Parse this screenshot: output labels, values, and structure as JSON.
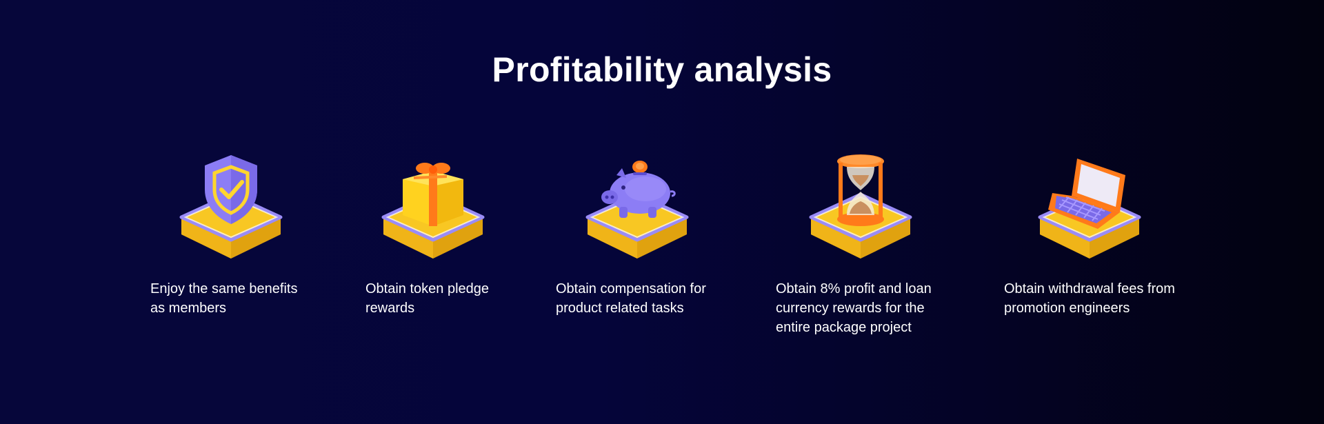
{
  "page": {
    "title": "Profitability analysis"
  },
  "features": [
    {
      "icon": "shield-check-icon",
      "text": "Enjoy the same benefits as members"
    },
    {
      "icon": "gift-box-icon",
      "text": "Obtain token pledge rewards"
    },
    {
      "icon": "piggy-bank-icon",
      "text": "Obtain compensation for product related tasks"
    },
    {
      "icon": "hourglass-icon",
      "text": "Obtain 8% profit and loan currency rewards for the entire package project"
    },
    {
      "icon": "laptop-icon",
      "text": "Obtain withdrawal fees from promotion engineers"
    }
  ],
  "colors": {
    "background": "#05053a",
    "platform_yellow": "#f7c21c",
    "accent_purple": "#8b7cf6",
    "accent_orange": "#ff7a1a"
  }
}
